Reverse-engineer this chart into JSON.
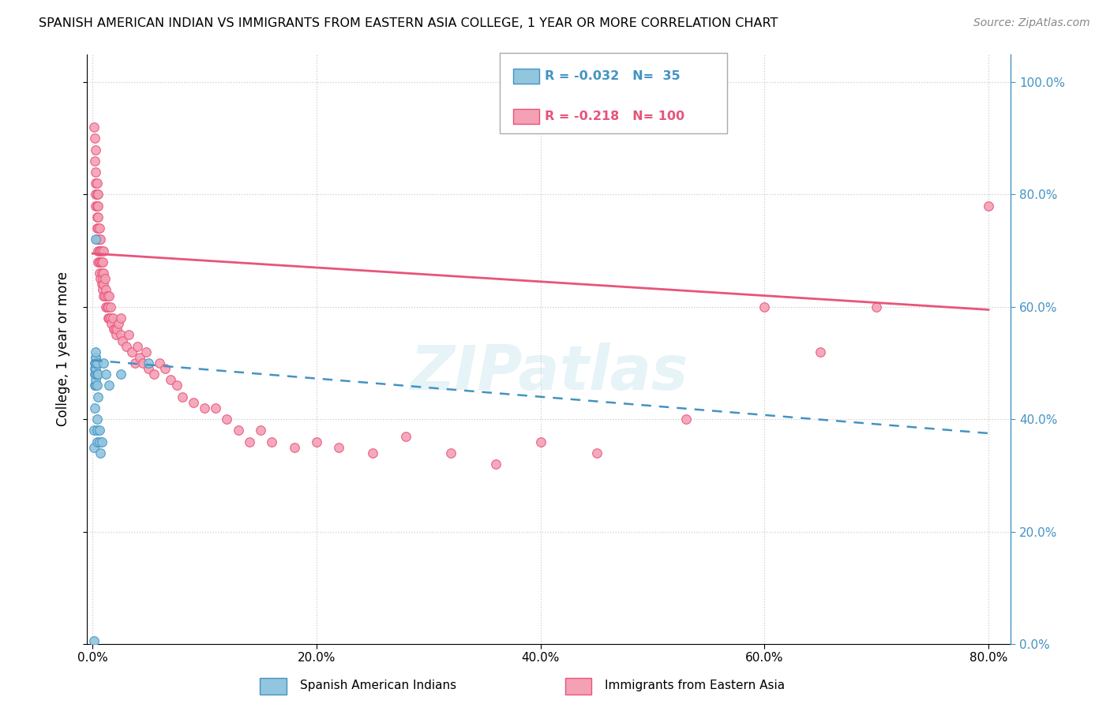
{
  "title": "SPANISH AMERICAN INDIAN VS IMMIGRANTS FROM EASTERN ASIA COLLEGE, 1 YEAR OR MORE CORRELATION CHART",
  "source": "Source: ZipAtlas.com",
  "ylabel_label": "College, 1 year or more",
  "legend_label1": "Spanish American Indians",
  "legend_label2": "Immigrants from Eastern Asia",
  "R1": -0.032,
  "N1": 35,
  "R2": -0.218,
  "N2": 100,
  "color_blue": "#92c5de",
  "color_pink": "#f4a0b5",
  "line_blue": "#4393c3",
  "line_pink": "#e8547a",
  "background": "#ffffff",
  "grid_color": "#cccccc",
  "watermark": "ZIPatlas",
  "xlim_max": 0.82,
  "ylim_min": 0.0,
  "ylim_max": 1.05,
  "xticks": [
    0.0,
    0.2,
    0.4,
    0.6,
    0.8
  ],
  "yticks": [
    0.0,
    0.2,
    0.4,
    0.6,
    0.8,
    1.0
  ],
  "blue_x": [
    0.001,
    0.001,
    0.001,
    0.002,
    0.002,
    0.002,
    0.002,
    0.002,
    0.003,
    0.003,
    0.003,
    0.003,
    0.003,
    0.003,
    0.003,
    0.003,
    0.003,
    0.003,
    0.004,
    0.004,
    0.004,
    0.004,
    0.004,
    0.004,
    0.005,
    0.005,
    0.006,
    0.006,
    0.007,
    0.008,
    0.01,
    0.012,
    0.015,
    0.025,
    0.05
  ],
  "blue_y": [
    0.005,
    0.35,
    0.38,
    0.42,
    0.46,
    0.48,
    0.49,
    0.5,
    0.46,
    0.47,
    0.48,
    0.49,
    0.5,
    0.5,
    0.51,
    0.51,
    0.52,
    0.72,
    0.36,
    0.38,
    0.4,
    0.46,
    0.48,
    0.5,
    0.44,
    0.48,
    0.36,
    0.38,
    0.34,
    0.36,
    0.5,
    0.48,
    0.46,
    0.48,
    0.5
  ],
  "pink_x": [
    0.001,
    0.002,
    0.002,
    0.003,
    0.003,
    0.003,
    0.003,
    0.003,
    0.004,
    0.004,
    0.004,
    0.004,
    0.004,
    0.004,
    0.005,
    0.005,
    0.005,
    0.005,
    0.005,
    0.005,
    0.005,
    0.006,
    0.006,
    0.006,
    0.006,
    0.006,
    0.007,
    0.007,
    0.007,
    0.007,
    0.008,
    0.008,
    0.008,
    0.008,
    0.009,
    0.009,
    0.009,
    0.01,
    0.01,
    0.01,
    0.01,
    0.011,
    0.011,
    0.012,
    0.012,
    0.013,
    0.013,
    0.014,
    0.014,
    0.015,
    0.015,
    0.016,
    0.016,
    0.017,
    0.018,
    0.019,
    0.02,
    0.021,
    0.022,
    0.023,
    0.025,
    0.025,
    0.027,
    0.03,
    0.032,
    0.035,
    0.038,
    0.04,
    0.042,
    0.045,
    0.048,
    0.05,
    0.055,
    0.06,
    0.065,
    0.07,
    0.075,
    0.08,
    0.09,
    0.1,
    0.11,
    0.12,
    0.13,
    0.14,
    0.15,
    0.16,
    0.18,
    0.2,
    0.22,
    0.25,
    0.28,
    0.32,
    0.36,
    0.4,
    0.45,
    0.53,
    0.6,
    0.65,
    0.7,
    0.8
  ],
  "pink_y": [
    0.92,
    0.86,
    0.9,
    0.78,
    0.8,
    0.82,
    0.84,
    0.88,
    0.72,
    0.74,
    0.76,
    0.78,
    0.8,
    0.82,
    0.68,
    0.7,
    0.72,
    0.74,
    0.76,
    0.78,
    0.8,
    0.66,
    0.68,
    0.7,
    0.72,
    0.74,
    0.65,
    0.68,
    0.7,
    0.72,
    0.64,
    0.66,
    0.68,
    0.7,
    0.63,
    0.65,
    0.68,
    0.62,
    0.64,
    0.66,
    0.7,
    0.62,
    0.65,
    0.6,
    0.63,
    0.6,
    0.62,
    0.58,
    0.6,
    0.58,
    0.62,
    0.58,
    0.6,
    0.57,
    0.58,
    0.56,
    0.56,
    0.55,
    0.56,
    0.57,
    0.55,
    0.58,
    0.54,
    0.53,
    0.55,
    0.52,
    0.5,
    0.53,
    0.51,
    0.5,
    0.52,
    0.49,
    0.48,
    0.5,
    0.49,
    0.47,
    0.46,
    0.44,
    0.43,
    0.42,
    0.42,
    0.4,
    0.38,
    0.36,
    0.38,
    0.36,
    0.35,
    0.36,
    0.35,
    0.34,
    0.37,
    0.34,
    0.32,
    0.36,
    0.34,
    0.4,
    0.6,
    0.52,
    0.6,
    0.78
  ],
  "pink_line_x0": 0.0,
  "pink_line_x1": 0.8,
  "pink_line_y0": 0.695,
  "pink_line_y1": 0.595,
  "blue_line_x0": 0.0,
  "blue_line_x1": 0.8,
  "blue_line_y0": 0.505,
  "blue_line_y1": 0.375
}
